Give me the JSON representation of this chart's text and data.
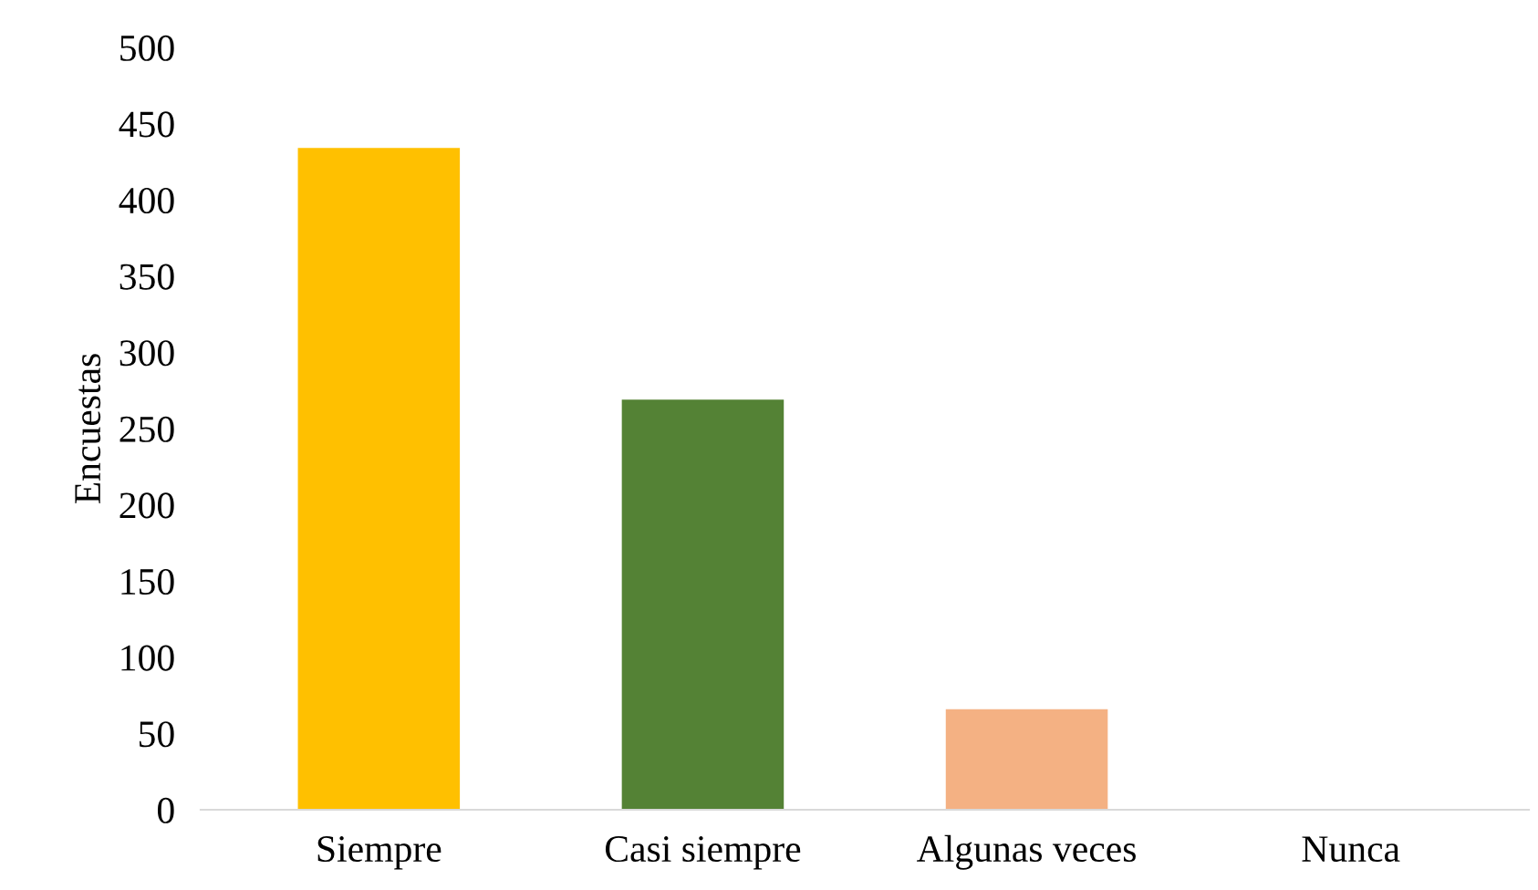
{
  "chart_data": {
    "type": "bar",
    "ylabel": "Encuestas",
    "categories": [
      "Siempre",
      "Casi siempre",
      "Algunas veces",
      "Nunca"
    ],
    "values": [
      434,
      269,
      66,
      0
    ],
    "colors": [
      "#ffc000",
      "#548235",
      "#f4b183",
      "#a5a5a5"
    ],
    "ylim": [
      0,
      500
    ],
    "yticks": [
      0,
      50,
      100,
      150,
      200,
      250,
      300,
      350,
      400,
      450,
      500
    ],
    "grid": false,
    "legend": false
  }
}
